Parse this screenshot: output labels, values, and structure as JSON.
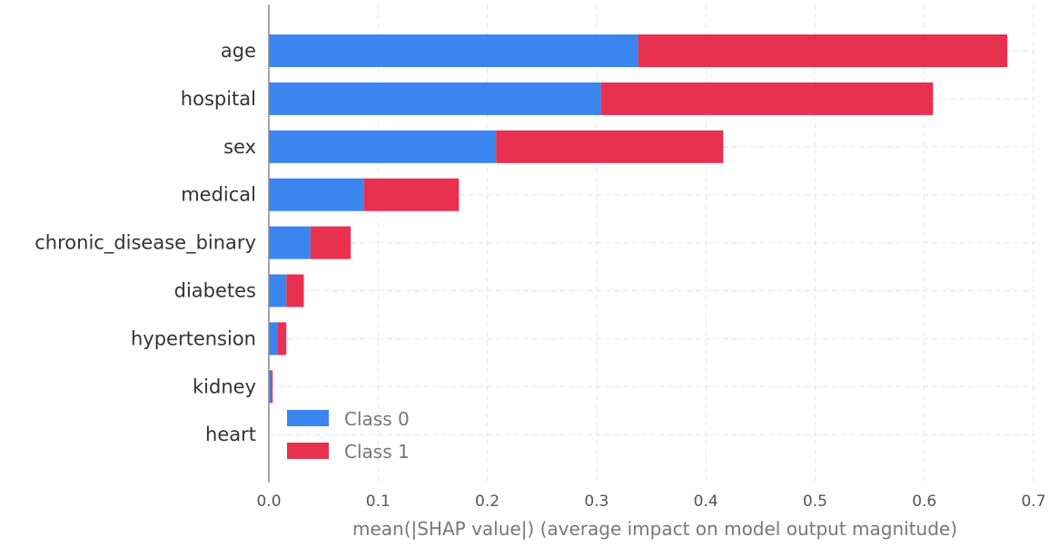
{
  "chart_data": {
    "type": "bar",
    "stacked": true,
    "orientation": "horizontal",
    "categories": [
      "age",
      "hospital",
      "sex",
      "medical",
      "chronic_disease_binary",
      "diabetes",
      "hypertension",
      "kidney",
      "heart"
    ],
    "series": [
      {
        "name": "Class 0",
        "color": "#3a86ee",
        "values": [
          0.338,
          0.304,
          0.208,
          0.087,
          0.038,
          0.016,
          0.008,
          0.002,
          0.0
        ]
      },
      {
        "name": "Class 1",
        "color": "#e8304f",
        "values": [
          0.338,
          0.304,
          0.208,
          0.087,
          0.037,
          0.016,
          0.008,
          0.0015,
          0.0
        ]
      }
    ],
    "xlabel": "mean(|SHAP value|) (average impact on model output magnitude)",
    "ylabel": "",
    "xlim": [
      0.0,
      0.7
    ],
    "xticks": [
      "0.0",
      "0.1",
      "0.2",
      "0.3",
      "0.4",
      "0.5",
      "0.6",
      "0.7"
    ],
    "grid": true,
    "legend_position": "lower-left"
  }
}
